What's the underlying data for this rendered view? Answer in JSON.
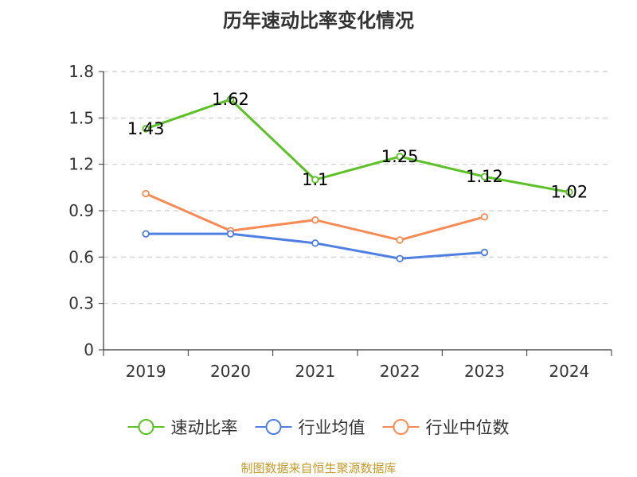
{
  "chart_data": {
    "type": "line",
    "title": "历年速动比率变化情况",
    "categories": [
      "2019",
      "2020",
      "2021",
      "2022",
      "2023",
      "2024"
    ],
    "y_ticks": [
      "0",
      "0.3",
      "0.6",
      "0.9",
      "1.2",
      "1.5",
      "1.8"
    ],
    "ylim": [
      0,
      1.8
    ],
    "grid": true,
    "legend_position": "bottom",
    "series": [
      {
        "name": "速动比率",
        "color": "#5cc127",
        "values": [
          1.43,
          1.62,
          1.1,
          1.25,
          1.12,
          1.02
        ],
        "labels": [
          "1.43",
          "1.62",
          "1.1",
          "1.25",
          "1.12",
          "1.02"
        ]
      },
      {
        "name": "行业均值",
        "color": "#4f80e1",
        "values": [
          0.75,
          0.75,
          0.69,
          0.59,
          0.63,
          null
        ]
      },
      {
        "name": "行业中位数",
        "color": "#f78b55",
        "values": [
          1.01,
          0.77,
          0.84,
          0.71,
          0.86,
          null
        ]
      }
    ]
  },
  "source_note": "制图数据来自恒生聚源数据库"
}
